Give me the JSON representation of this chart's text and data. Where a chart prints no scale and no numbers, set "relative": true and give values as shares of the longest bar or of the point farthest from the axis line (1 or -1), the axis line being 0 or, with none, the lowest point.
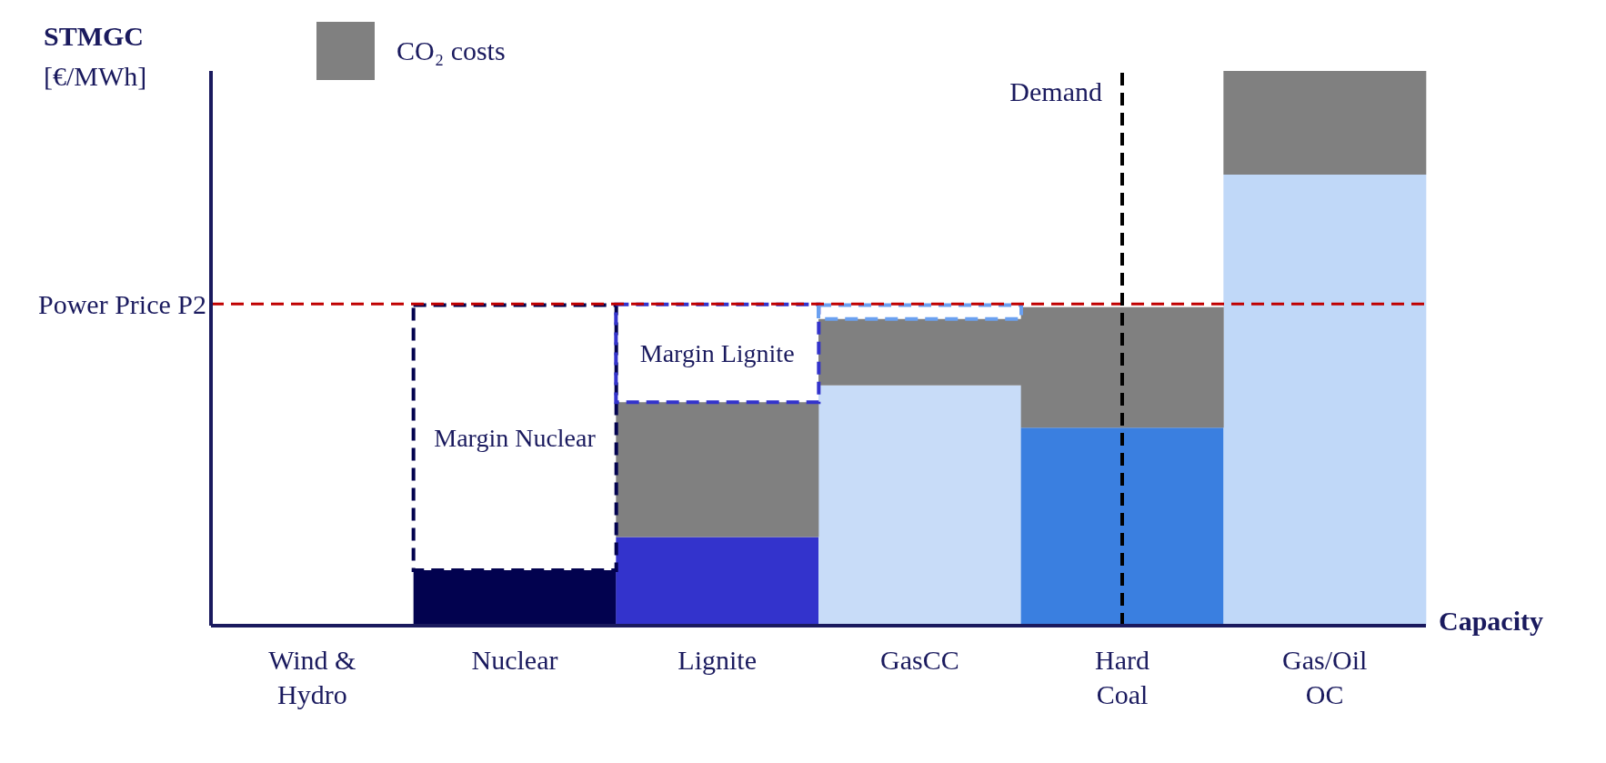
{
  "chart_data": {
    "type": "bar",
    "relative": true,
    "stacked": true,
    "ylabel": "STMGC [€/MWh]",
    "xlabel": "Capacity",
    "legend": "top left",
    "categories": [
      "Wind & Hydro",
      "Nuclear",
      "Lignite",
      "GasCC",
      "Hard Coal",
      "Gas/Oil OC"
    ],
    "series": [
      {
        "colors": [
          "#e8eef8",
          "#02024f",
          "#3333cc",
          "#c8dcf8",
          "#3a7fe0",
          "#c0d8f8"
        ],
        "values": [
          0,
          0.1,
          0.16,
          0.433,
          0.357,
          0.813
        ]
      },
      {
        "name": "CO₂ costs",
        "color": "#808080",
        "values": [
          0,
          0,
          0.243,
          0.12,
          0.217,
          0.187
        ]
      },
      {
        "colors": [
          "#02024f",
          "#02024f",
          "#3333cc",
          "#6aa0f0",
          "#6aa0f0",
          "#6aa0f0"
        ],
        "line_style": "dashed",
        "values": [
          null,
          0.478,
          0.176,
          0.025,
          null,
          null
        ]
      }
    ],
    "ref_lines": [
      {
        "axis": "y",
        "value": 0.58,
        "label": "Power Price P2",
        "color": "#c00000",
        "line_style": "dashed"
      },
      {
        "axis": "x",
        "value": "Hard Coal",
        "label": "Demand",
        "color": "#000000",
        "line_style": "dashed"
      }
    ],
    "annotations": [
      "Margin Nuclear",
      "Margin Lignite"
    ]
  }
}
